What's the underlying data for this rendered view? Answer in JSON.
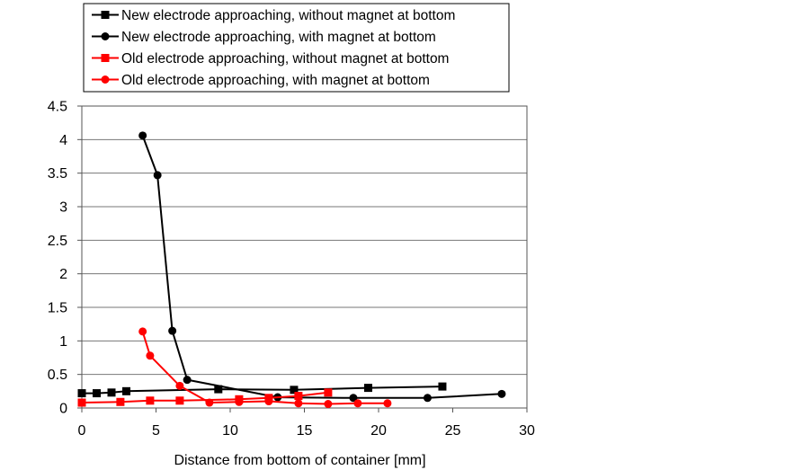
{
  "chart_data": {
    "type": "line",
    "title": "",
    "xlabel": "Distance from bottom of container [mm]",
    "ylabel": "",
    "xlim": [
      0,
      30
    ],
    "ylim": [
      0,
      4.5
    ],
    "xticks": [
      "0",
      "5",
      "10",
      "15",
      "20",
      "25",
      "30"
    ],
    "yticks": [
      "0",
      "0.5",
      "1",
      "1.5",
      "2",
      "2.5",
      "3",
      "3.5",
      "4",
      "4.5"
    ],
    "grid": "horizontal",
    "legend_position": "top",
    "series": [
      {
        "name": "New electrode approaching, without magnet at bottom",
        "color": "#000000",
        "marker": "square",
        "points": [
          [
            0,
            0.22
          ],
          [
            1,
            0.22
          ],
          [
            2,
            0.23
          ],
          [
            3,
            0.25
          ],
          [
            9.2,
            0.28
          ],
          [
            14.3,
            0.27
          ],
          [
            19.3,
            0.3
          ],
          [
            24.3,
            0.32
          ]
        ]
      },
      {
        "name": "New electrode approaching, with magnet at bottom",
        "color": "#000000",
        "marker": "circle",
        "points": [
          [
            4.1,
            4.06
          ],
          [
            5.1,
            3.47
          ],
          [
            6.1,
            1.15
          ],
          [
            7.1,
            0.42
          ],
          [
            13.2,
            0.16
          ],
          [
            18.3,
            0.15
          ],
          [
            23.3,
            0.15
          ],
          [
            28.3,
            0.21
          ]
        ]
      },
      {
        "name": "Old electrode approaching, without magnet at bottom",
        "color": "#ff0000",
        "marker": "square",
        "points": [
          [
            0,
            0.08
          ],
          [
            2.6,
            0.09
          ],
          [
            4.6,
            0.11
          ],
          [
            6.6,
            0.11
          ],
          [
            10.6,
            0.13
          ],
          [
            12.6,
            0.15
          ],
          [
            14.6,
            0.18
          ],
          [
            16.6,
            0.23
          ]
        ]
      },
      {
        "name": "Old electrode approaching, with magnet at bottom",
        "color": "#ff0000",
        "marker": "circle",
        "points": [
          [
            4.1,
            1.14
          ],
          [
            4.6,
            0.78
          ],
          [
            6.6,
            0.33
          ],
          [
            8.6,
            0.08
          ],
          [
            10.6,
            0.09
          ],
          [
            12.6,
            0.1
          ],
          [
            14.6,
            0.07
          ],
          [
            16.6,
            0.06
          ],
          [
            18.6,
            0.07
          ],
          [
            20.6,
            0.07
          ]
        ]
      }
    ]
  }
}
